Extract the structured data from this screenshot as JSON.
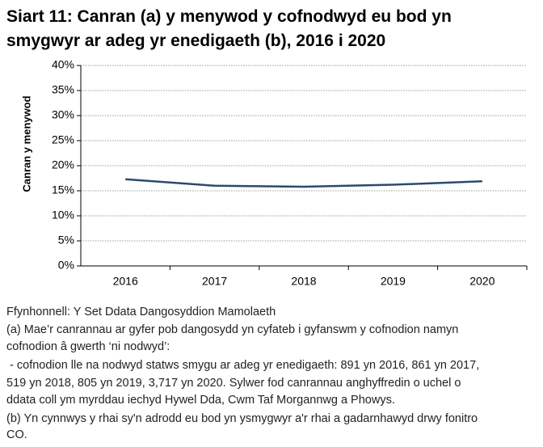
{
  "chart_data": {
    "type": "line",
    "title": "Siart 11: Canran (a) y menywod y cofnodwyd eu bod yn smygwyr ar adeg yr enedigaeth (b), 2016 i 2020",
    "y_label": "Canran y menywod",
    "categories": [
      "2016",
      "2017",
      "2018",
      "2019",
      "2020"
    ],
    "values": [
      17.3,
      16.0,
      15.8,
      16.2,
      16.9
    ],
    "color": "#2b4a6e",
    "ylim": [
      0,
      40
    ],
    "yticks": [
      {
        "value": 0,
        "label": "0%"
      },
      {
        "value": 5,
        "label": "5%"
      },
      {
        "value": 10,
        "label": "10%"
      },
      {
        "value": 15,
        "label": "15%"
      },
      {
        "value": 20,
        "label": "20%"
      },
      {
        "value": 25,
        "label": "25%"
      },
      {
        "value": 30,
        "label": "30%"
      },
      {
        "value": 35,
        "label": "35%"
      },
      {
        "value": 40,
        "label": "40%"
      }
    ],
    "grid": true,
    "notes": [
      "Ffynhonnell: Y Set Ddata Dangosyddion Mamolaeth",
      "(a) Mae’r canrannau ar gyfer pob dangosydd yn cyfateb i gyfanswm y cofnodion namyn",
      "cofnodion â gwerth ‘ni nodwyd’:",
      " - cofnodion lle na nodwyd statws smygu ar adeg yr enedigaeth: 891 yn 2016, 861 yn 2017,",
      "519 yn 2018, 805 yn 2019, 3,717 yn 2020. Sylwer fod canrannau anghyffredin o uchel o",
      "ddata coll ym myrddau iechyd Hywel Dda, Cwm Taf Morgannwg a Phowys.",
      "(b) Yn cynnwys y rhai sy'n adrodd eu bod yn ysmygwyr a'r rhai a gadarnhawyd drwy fonitro",
      "CO."
    ]
  }
}
